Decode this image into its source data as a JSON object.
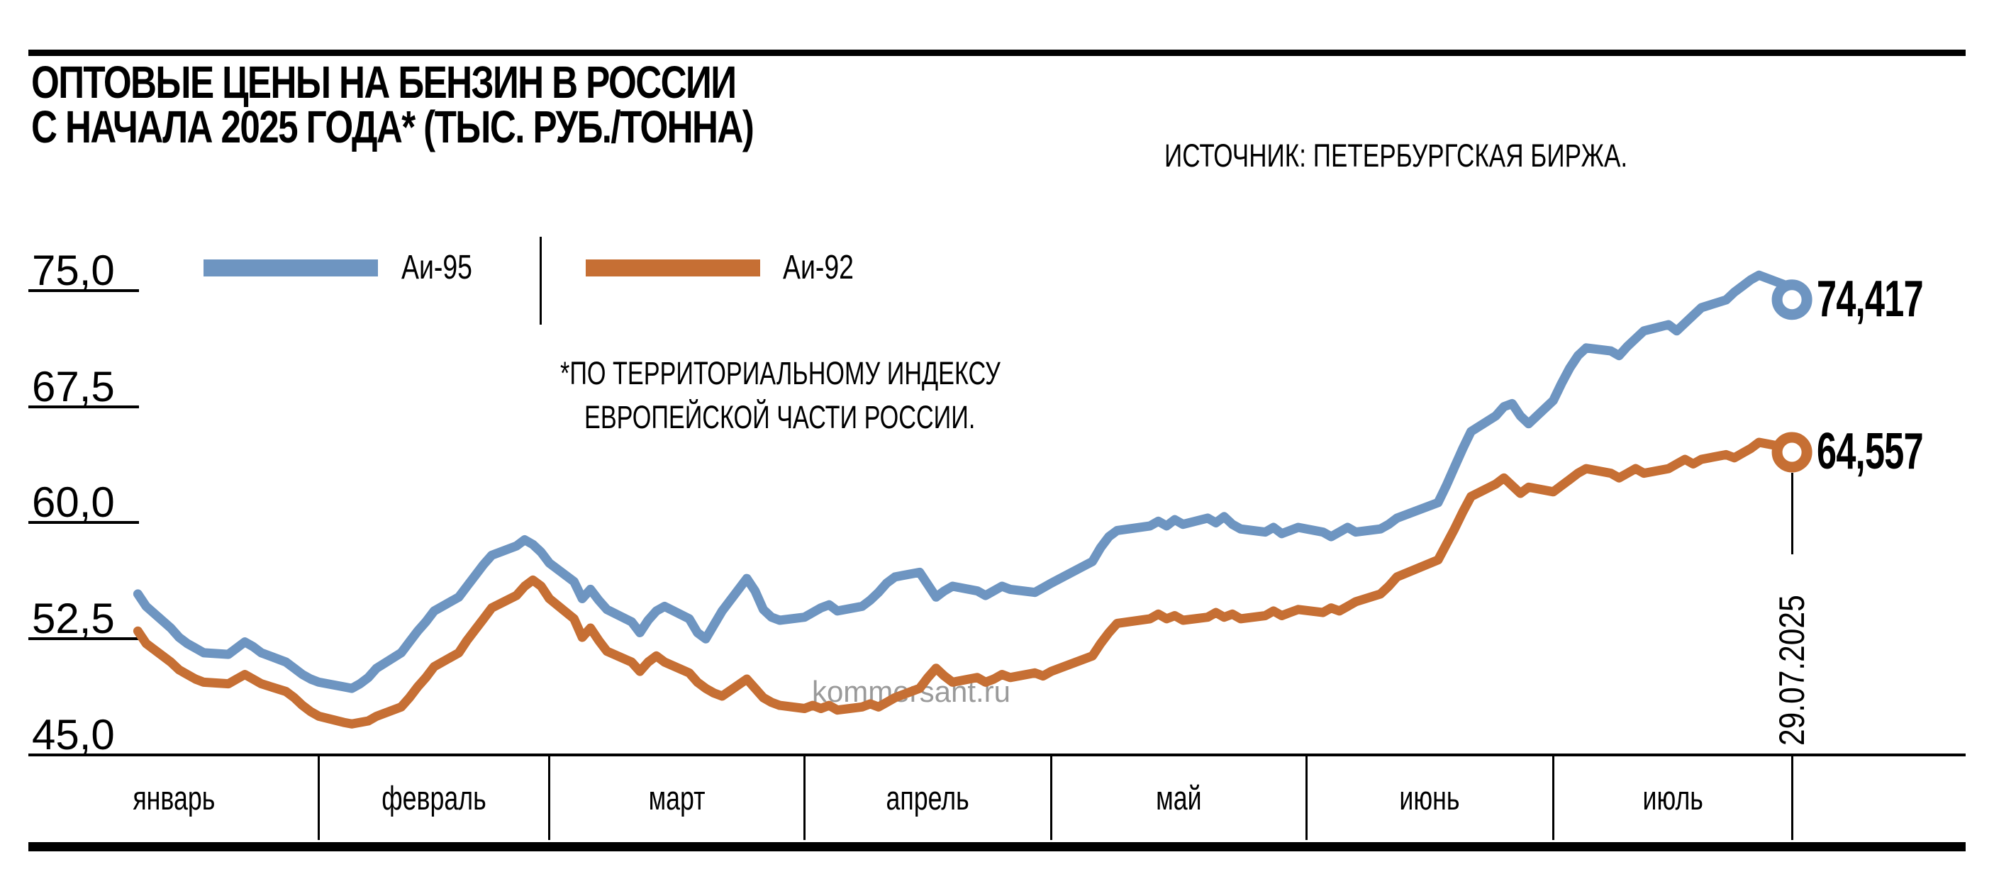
{
  "header": {
    "title_line1": "ОПТОВЫЕ ЦЕНЫ НА БЕНЗИН В РОССИИ",
    "title_line2": "С НАЧАЛА 2025 ГОДА* (ТЫС. РУБ./ТОННА)",
    "source": "ИСТОЧНИК: ПЕТЕРБУРГСКАЯ БИРЖА."
  },
  "legend": {
    "ai95_label": "Аи-95",
    "ai92_label": "Аи-92"
  },
  "footnote": {
    "line1": "*ПО ТЕРРИТОРИАЛЬНОМУ ИНДЕКСУ",
    "line2": "ЕВРОПЕЙСКОЙ ЧАСТИ РОССИИ."
  },
  "watermark": "kommersant.ru",
  "annotations": {
    "ai95_last": "74,417",
    "ai92_last": "64,557",
    "last_date": "29.07.2025"
  },
  "colors": {
    "ai95": "#6e95c1",
    "ai92": "#c66f34",
    "axis": "#000000",
    "watermark": "#9a9a9a"
  },
  "chart_data": {
    "type": "line",
    "title": "Оптовые цены на бензин в России с начала 2025 года (тыс. руб./тонна)",
    "x_unit": "day_of_year_2025",
    "ylim": [
      45,
      76.5
    ],
    "axis_min": 45,
    "y_ticks": [
      "75,0",
      "67,5",
      "60,0",
      "52,5",
      "45,0"
    ],
    "y_tick_values": [
      75,
      67.5,
      60,
      52.5,
      45
    ],
    "months": [
      {
        "label": "январь",
        "days": 31
      },
      {
        "label": "февраль",
        "days": 28
      },
      {
        "label": "март",
        "days": 31
      },
      {
        "label": "апрель",
        "days": 30
      },
      {
        "label": "май",
        "days": 31
      },
      {
        "label": "июнь",
        "days": 30
      },
      {
        "label": "июль",
        "days": 29
      }
    ],
    "legend_position": "top-left",
    "series": [
      {
        "name": "Аи-95",
        "color": "#6e95c1",
        "last_value": 74.417,
        "last_date": "29.07.2025",
        "points": [
          [
            9,
            55.4
          ],
          [
            10,
            54.6
          ],
          [
            13,
            53.2
          ],
          [
            14,
            52.6
          ],
          [
            15,
            52.2
          ],
          [
            16,
            51.9
          ],
          [
            17,
            51.6
          ],
          [
            20,
            51.5
          ],
          [
            21,
            51.9
          ],
          [
            22,
            52.3
          ],
          [
            23,
            52.0
          ],
          [
            24,
            51.6
          ],
          [
            27,
            51.0
          ],
          [
            28,
            50.6
          ],
          [
            29,
            50.2
          ],
          [
            30,
            49.9
          ],
          [
            31,
            49.7
          ],
          [
            34,
            49.4
          ],
          [
            35,
            49.3
          ],
          [
            36,
            49.6
          ],
          [
            37,
            50.0
          ],
          [
            38,
            50.6
          ],
          [
            41,
            51.6
          ],
          [
            42,
            52.3
          ],
          [
            43,
            53.0
          ],
          [
            44,
            53.6
          ],
          [
            45,
            54.3
          ],
          [
            48,
            55.2
          ],
          [
            49,
            55.9
          ],
          [
            50,
            56.6
          ],
          [
            51,
            57.3
          ],
          [
            52,
            57.9
          ],
          [
            55,
            58.5
          ],
          [
            56,
            58.9
          ],
          [
            57,
            58.6
          ],
          [
            58,
            58.1
          ],
          [
            59,
            57.4
          ],
          [
            62,
            56.2
          ],
          [
            63,
            55.1
          ],
          [
            64,
            55.7
          ],
          [
            65,
            55.0
          ],
          [
            66,
            54.4
          ],
          [
            69,
            53.6
          ],
          [
            70,
            52.9
          ],
          [
            71,
            53.7
          ],
          [
            72,
            54.3
          ],
          [
            73,
            54.6
          ],
          [
            76,
            53.8
          ],
          [
            77,
            52.9
          ],
          [
            78,
            52.5
          ],
          [
            79,
            53.4
          ],
          [
            80,
            54.3
          ],
          [
            83,
            56.4
          ],
          [
            84,
            55.6
          ],
          [
            85,
            54.4
          ],
          [
            86,
            53.9
          ],
          [
            87,
            53.7
          ],
          [
            90,
            53.9
          ],
          [
            91,
            54.2
          ],
          [
            92,
            54.5
          ],
          [
            93,
            54.7
          ],
          [
            94,
            54.3
          ],
          [
            97,
            54.6
          ],
          [
            98,
            55.0
          ],
          [
            99,
            55.5
          ],
          [
            100,
            56.1
          ],
          [
            101,
            56.5
          ],
          [
            104,
            56.8
          ],
          [
            105,
            56.0
          ],
          [
            106,
            55.2
          ],
          [
            107,
            55.6
          ],
          [
            108,
            55.9
          ],
          [
            111,
            55.6
          ],
          [
            112,
            55.3
          ],
          [
            113,
            55.6
          ],
          [
            114,
            55.9
          ],
          [
            115,
            55.7
          ],
          [
            118,
            55.5
          ],
          [
            119,
            55.8
          ],
          [
            120,
            56.1
          ],
          [
            125,
            57.5
          ],
          [
            126,
            58.4
          ],
          [
            127,
            59.1
          ],
          [
            128,
            59.5
          ],
          [
            132,
            59.8
          ],
          [
            133,
            60.1
          ],
          [
            134,
            59.8
          ],
          [
            135,
            60.2
          ],
          [
            136,
            59.9
          ],
          [
            139,
            60.3
          ],
          [
            140,
            60.0
          ],
          [
            141,
            60.4
          ],
          [
            142,
            59.9
          ],
          [
            143,
            59.6
          ],
          [
            146,
            59.4
          ],
          [
            147,
            59.7
          ],
          [
            148,
            59.3
          ],
          [
            149,
            59.5
          ],
          [
            150,
            59.7
          ],
          [
            153,
            59.4
          ],
          [
            154,
            59.1
          ],
          [
            155,
            59.4
          ],
          [
            156,
            59.7
          ],
          [
            157,
            59.4
          ],
          [
            160,
            59.6
          ],
          [
            161,
            59.9
          ],
          [
            162,
            60.3
          ],
          [
            167,
            61.3
          ],
          [
            168,
            62.4
          ],
          [
            169,
            63.6
          ],
          [
            170,
            64.8
          ],
          [
            171,
            65.9
          ],
          [
            174,
            66.9
          ],
          [
            175,
            67.5
          ],
          [
            176,
            67.7
          ],
          [
            177,
            66.9
          ],
          [
            178,
            66.4
          ],
          [
            181,
            67.9
          ],
          [
            182,
            69.0
          ],
          [
            183,
            70.0
          ],
          [
            184,
            70.8
          ],
          [
            185,
            71.3
          ],
          [
            188,
            71.1
          ],
          [
            189,
            70.8
          ],
          [
            190,
            71.4
          ],
          [
            191,
            71.9
          ],
          [
            192,
            72.4
          ],
          [
            195,
            72.8
          ],
          [
            196,
            72.4
          ],
          [
            197,
            72.9
          ],
          [
            198,
            73.4
          ],
          [
            199,
            73.9
          ],
          [
            202,
            74.4
          ],
          [
            203,
            74.9
          ],
          [
            204,
            75.3
          ],
          [
            205,
            75.7
          ],
          [
            206,
            76.0
          ],
          [
            209,
            75.4
          ],
          [
            210,
            74.417
          ]
        ]
      },
      {
        "name": "Аи-92",
        "color": "#c66f34",
        "last_value": 64.557,
        "last_date": "29.07.2025",
        "points": [
          [
            9,
            53.0
          ],
          [
            10,
            52.2
          ],
          [
            13,
            51.0
          ],
          [
            14,
            50.5
          ],
          [
            15,
            50.2
          ],
          [
            16,
            49.9
          ],
          [
            17,
            49.7
          ],
          [
            20,
            49.6
          ],
          [
            21,
            49.9
          ],
          [
            22,
            50.2
          ],
          [
            23,
            49.9
          ],
          [
            24,
            49.6
          ],
          [
            27,
            49.1
          ],
          [
            28,
            48.7
          ],
          [
            29,
            48.2
          ],
          [
            30,
            47.8
          ],
          [
            31,
            47.5
          ],
          [
            34,
            47.1
          ],
          [
            35,
            47.0
          ],
          [
            36,
            47.1
          ],
          [
            37,
            47.2
          ],
          [
            38,
            47.5
          ],
          [
            41,
            48.1
          ],
          [
            42,
            48.7
          ],
          [
            43,
            49.4
          ],
          [
            44,
            50.0
          ],
          [
            45,
            50.7
          ],
          [
            48,
            51.6
          ],
          [
            49,
            52.4
          ],
          [
            50,
            53.1
          ],
          [
            51,
            53.8
          ],
          [
            52,
            54.5
          ],
          [
            55,
            55.3
          ],
          [
            56,
            55.9
          ],
          [
            57,
            56.3
          ],
          [
            58,
            55.9
          ],
          [
            59,
            55.1
          ],
          [
            62,
            53.8
          ],
          [
            63,
            52.6
          ],
          [
            64,
            53.2
          ],
          [
            65,
            52.4
          ],
          [
            66,
            51.7
          ],
          [
            69,
            51.0
          ],
          [
            70,
            50.4
          ],
          [
            71,
            51.0
          ],
          [
            72,
            51.4
          ],
          [
            73,
            51.0
          ],
          [
            76,
            50.3
          ],
          [
            77,
            49.7
          ],
          [
            78,
            49.3
          ],
          [
            79,
            49.0
          ],
          [
            80,
            48.8
          ],
          [
            83,
            49.9
          ],
          [
            84,
            49.3
          ],
          [
            85,
            48.7
          ],
          [
            86,
            48.4
          ],
          [
            87,
            48.2
          ],
          [
            90,
            48.0
          ],
          [
            91,
            48.2
          ],
          [
            92,
            48.0
          ],
          [
            93,
            48.2
          ],
          [
            94,
            47.9
          ],
          [
            97,
            48.1
          ],
          [
            98,
            48.3
          ],
          [
            99,
            48.1
          ],
          [
            100,
            48.4
          ],
          [
            101,
            48.7
          ],
          [
            104,
            49.3
          ],
          [
            105,
            50.0
          ],
          [
            106,
            50.6
          ],
          [
            107,
            50.1
          ],
          [
            108,
            49.7
          ],
          [
            111,
            50.0
          ],
          [
            112,
            49.7
          ],
          [
            113,
            49.9
          ],
          [
            114,
            50.2
          ],
          [
            115,
            50.0
          ],
          [
            118,
            50.3
          ],
          [
            119,
            50.1
          ],
          [
            120,
            50.4
          ],
          [
            125,
            51.4
          ],
          [
            126,
            52.2
          ],
          [
            127,
            52.9
          ],
          [
            128,
            53.5
          ],
          [
            132,
            53.8
          ],
          [
            133,
            54.1
          ],
          [
            134,
            53.8
          ],
          [
            135,
            54.0
          ],
          [
            136,
            53.7
          ],
          [
            139,
            53.9
          ],
          [
            140,
            54.2
          ],
          [
            141,
            53.9
          ],
          [
            142,
            54.1
          ],
          [
            143,
            53.8
          ],
          [
            146,
            54.0
          ],
          [
            147,
            54.3
          ],
          [
            148,
            54.0
          ],
          [
            149,
            54.2
          ],
          [
            150,
            54.4
          ],
          [
            153,
            54.2
          ],
          [
            154,
            54.5
          ],
          [
            155,
            54.3
          ],
          [
            156,
            54.6
          ],
          [
            157,
            54.9
          ],
          [
            160,
            55.4
          ],
          [
            161,
            55.9
          ],
          [
            162,
            56.5
          ],
          [
            167,
            57.6
          ],
          [
            168,
            58.6
          ],
          [
            169,
            59.6
          ],
          [
            170,
            60.7
          ],
          [
            171,
            61.7
          ],
          [
            174,
            62.5
          ],
          [
            175,
            62.9
          ],
          [
            176,
            62.4
          ],
          [
            177,
            61.9
          ],
          [
            178,
            62.3
          ],
          [
            181,
            62.0
          ],
          [
            182,
            62.4
          ],
          [
            183,
            62.8
          ],
          [
            184,
            63.2
          ],
          [
            185,
            63.5
          ],
          [
            188,
            63.2
          ],
          [
            189,
            62.9
          ],
          [
            190,
            63.2
          ],
          [
            191,
            63.5
          ],
          [
            192,
            63.2
          ],
          [
            195,
            63.5
          ],
          [
            196,
            63.8
          ],
          [
            197,
            64.1
          ],
          [
            198,
            63.8
          ],
          [
            199,
            64.1
          ],
          [
            202,
            64.4
          ],
          [
            203,
            64.2
          ],
          [
            204,
            64.5
          ],
          [
            205,
            64.8
          ],
          [
            206,
            65.2
          ],
          [
            209,
            64.9
          ],
          [
            210,
            64.557
          ]
        ]
      }
    ]
  }
}
